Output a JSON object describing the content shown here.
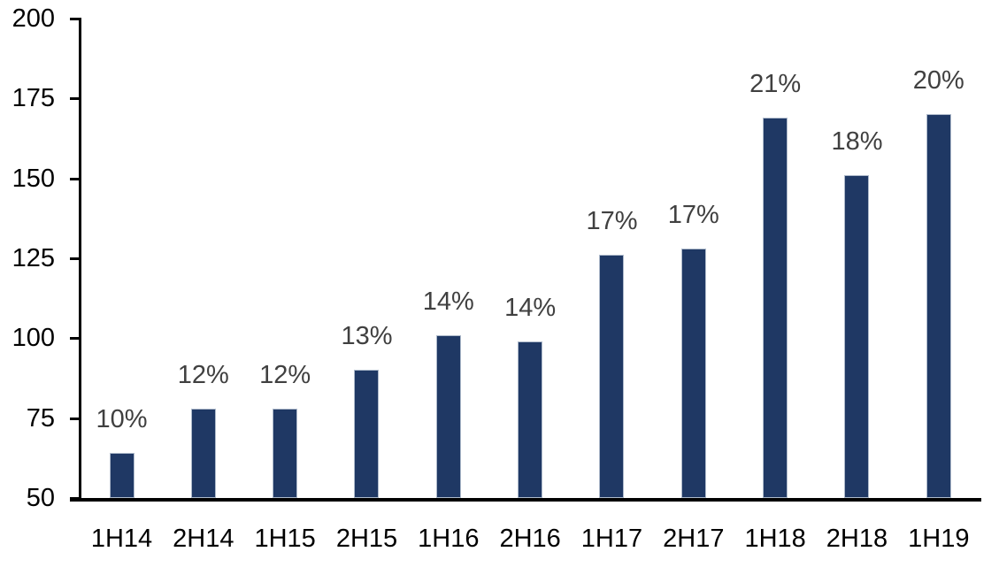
{
  "canvas": {
    "background": "#FFFFFF"
  },
  "chart_data": {
    "type": "bar",
    "title": "",
    "xlabel": "",
    "ylabel": "",
    "categories": [
      "1H14",
      "2H14",
      "1H15",
      "2H15",
      "1H16",
      "2H16",
      "1H17",
      "2H17",
      "1H18",
      "2H18",
      "1H19"
    ],
    "values": [
      64,
      78,
      78,
      90,
      101,
      99,
      126,
      128,
      169,
      151,
      170
    ],
    "bar_labels": [
      "10%",
      "12%",
      "12%",
      "13%",
      "14%",
      "14%",
      "17%",
      "17%",
      "21%",
      "18%",
      "20%"
    ],
    "yticks": [
      50,
      75,
      100,
      125,
      150,
      175,
      200
    ],
    "ytick_labels": [
      "50",
      "75",
      "100",
      "125",
      "150",
      "175",
      "200"
    ],
    "ylim": [
      50,
      200
    ],
    "grid": false,
    "legend": null,
    "colors": {
      "bar": "#1F3864",
      "bar_border": "#AEBACB",
      "value_label": "#404040",
      "tick_label": "#000000",
      "category_label": "#000000",
      "axis": "#000000",
      "background": "#FFFFFF"
    }
  }
}
